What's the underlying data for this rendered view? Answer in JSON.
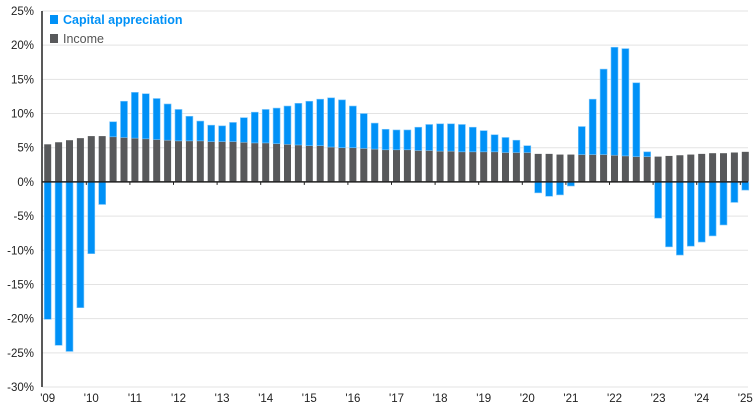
{
  "chart_data": {
    "type": "bar",
    "stacked": true,
    "title": "",
    "xlabel": "",
    "ylabel": "",
    "ylim": [
      -30,
      25
    ],
    "y_ticks": [
      25,
      20,
      15,
      10,
      5,
      0,
      -5,
      -10,
      -15,
      -20,
      -25,
      -30
    ],
    "y_tick_labels": [
      "25%",
      "20%",
      "15%",
      "10%",
      "5%",
      "0%",
      "-5%",
      "-10%",
      "-15%",
      "-20%",
      "-25%",
      "-30%"
    ],
    "grid": true,
    "legend": "top-left",
    "categories": [
      "'09",
      "",
      "",
      "",
      "'10",
      "",
      "",
      "",
      "'11",
      "",
      "",
      "",
      "'12",
      "",
      "",
      "",
      "'13",
      "",
      "",
      "",
      "'14",
      "",
      "",
      "",
      "'15",
      "",
      "",
      "",
      "'16",
      "",
      "",
      "",
      "'17",
      "",
      "",
      "",
      "'18",
      "",
      "",
      "",
      "'19",
      "",
      "",
      "",
      "'20",
      "",
      "",
      "",
      "'21",
      "",
      "",
      "",
      "'22",
      "",
      "",
      "",
      "'23",
      "",
      "",
      "",
      "'24",
      "",
      "",
      "",
      "'25"
    ],
    "series": [
      {
        "name": "Capital appreciation",
        "color": "#0091F7",
        "values": [
          -20.1,
          -23.9,
          -24.8,
          -18.4,
          -10.5,
          -3.3,
          2.2,
          5.3,
          6.7,
          6.6,
          6.0,
          5.3,
          4.6,
          3.6,
          2.9,
          2.4,
          2.3,
          2.8,
          3.6,
          4.5,
          4.9,
          5.2,
          5.6,
          6.1,
          6.5,
          6.8,
          7.2,
          7.0,
          6.1,
          5.1,
          3.8,
          3.0,
          2.9,
          2.9,
          3.4,
          3.8,
          4.0,
          4.0,
          4.0,
          3.6,
          3.1,
          2.5,
          2.2,
          1.8,
          1.0,
          -1.6,
          -2.1,
          -1.9,
          -0.6,
          4.1,
          8.1,
          12.5,
          15.8,
          15.7,
          10.8,
          0.7,
          -5.3,
          -9.5,
          -10.7,
          -9.4,
          -8.8,
          -7.9,
          -6.3,
          -3.0,
          -1.2
        ]
      },
      {
        "name": "Income",
        "color": "#58595B",
        "values": [
          5.5,
          5.8,
          6.1,
          6.4,
          6.7,
          6.7,
          6.6,
          6.5,
          6.4,
          6.3,
          6.2,
          6.1,
          6.0,
          6.0,
          6.0,
          5.9,
          5.9,
          5.9,
          5.8,
          5.7,
          5.7,
          5.6,
          5.5,
          5.4,
          5.3,
          5.3,
          5.1,
          5.0,
          5.0,
          4.9,
          4.8,
          4.7,
          4.7,
          4.7,
          4.6,
          4.6,
          4.5,
          4.5,
          4.4,
          4.4,
          4.4,
          4.4,
          4.3,
          4.3,
          4.3,
          4.1,
          4.1,
          4.0,
          4.0,
          4.0,
          4.0,
          4.0,
          3.9,
          3.8,
          3.7,
          3.7,
          3.7,
          3.8,
          3.9,
          4.0,
          4.1,
          4.2,
          4.2,
          4.3,
          4.4
        ]
      }
    ]
  },
  "colors": {
    "grid": "#E3E3E3",
    "axis": "#222222"
  }
}
